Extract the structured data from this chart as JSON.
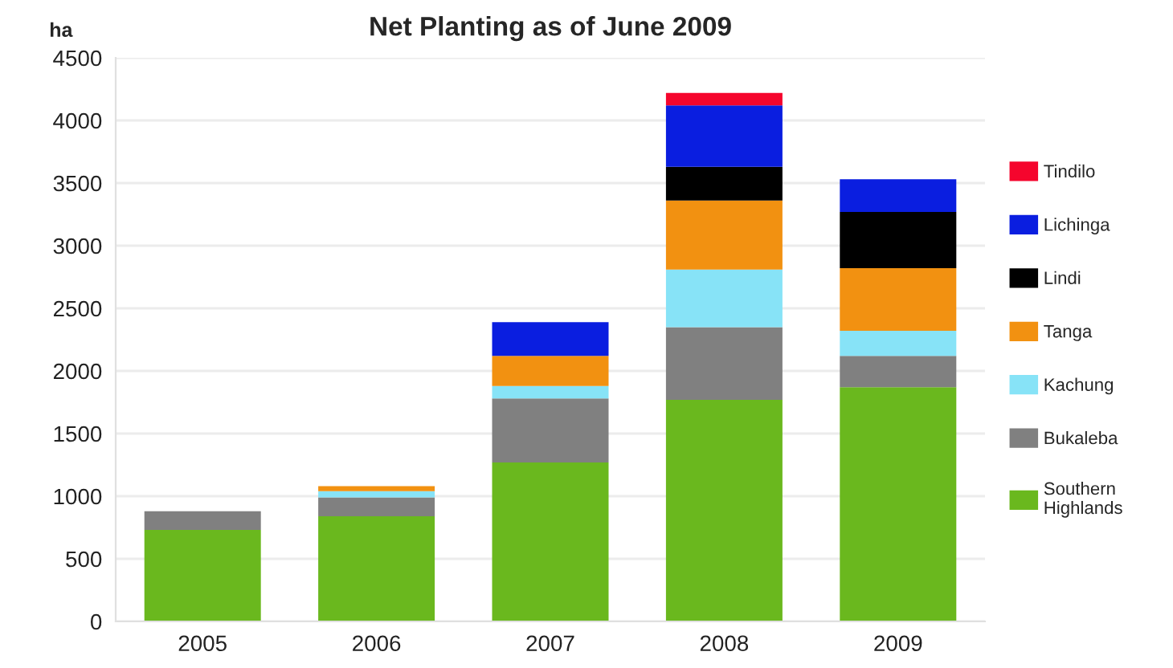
{
  "chart_data": {
    "type": "bar",
    "title": "Net Planting as of June 2009",
    "ylabel": "ha",
    "categories": [
      "2005",
      "2006",
      "2007",
      "2008",
      "2009"
    ],
    "stacked": true,
    "series": [
      {
        "name": "Southern\nHighlands",
        "color": "#6ab81e",
        "values": [
          730,
          840,
          1270,
          1770,
          1870
        ]
      },
      {
        "name": "Bukaleba",
        "color": "#808080",
        "values": [
          150,
          150,
          510,
          580,
          250
        ]
      },
      {
        "name": "Kachung",
        "color": "#87e3f7",
        "values": [
          null,
          50,
          100,
          460,
          200
        ]
      },
      {
        "name": "Tanga",
        "color": "#f29111",
        "values": [
          null,
          40,
          240,
          550,
          500
        ]
      },
      {
        "name": "Lindi",
        "color": "#000000",
        "values": [
          null,
          null,
          null,
          270,
          450
        ]
      },
      {
        "name": "Lichinga",
        "color": "#0a1ee0",
        "values": [
          null,
          null,
          270,
          490,
          260
        ]
      },
      {
        "name": "Tindilo",
        "color": "#f5052d",
        "values": [
          null,
          null,
          null,
          100,
          null
        ]
      }
    ],
    "ylim": [
      0,
      4500
    ],
    "yticks": [
      0,
      500,
      1000,
      1500,
      2000,
      2500,
      3000,
      3500,
      4000,
      4500
    ],
    "grid": "y",
    "legend": "right"
  }
}
